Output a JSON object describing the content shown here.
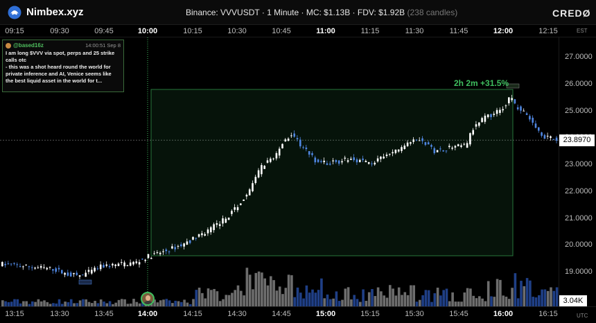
{
  "header": {
    "app_title": "Nimbex.xyz",
    "chart_title": "Binance: VVVUSDT · 1 Minute · MC: $1.13B · FDV: $1.92B",
    "candles_note": "(238 candles)",
    "brand": "CREDØ",
    "logo_icon": "nimbex-logo-icon"
  },
  "top_axis": {
    "timezone": "EST",
    "ticks": [
      "09:15",
      "09:30",
      "09:45",
      "10:00",
      "10:15",
      "10:30",
      "10:45",
      "11:00",
      "11:15",
      "11:30",
      "11:45",
      "12:00",
      "12:15"
    ]
  },
  "bottom_axis": {
    "timezone": "UTC",
    "ticks": [
      "13:15",
      "13:30",
      "13:45",
      "14:00",
      "14:15",
      "14:30",
      "14:45",
      "15:00",
      "15:15",
      "15:30",
      "15:45",
      "16:00",
      "16:15"
    ]
  },
  "price_axis": {
    "ticks": [
      "27.0000",
      "26.0000",
      "25.0000",
      "24.0000",
      "23.0000",
      "22.0000",
      "21.0000",
      "20.0000",
      "19.0000"
    ],
    "current_price": "23.8970",
    "volume_label": "3.04K"
  },
  "range_box": {
    "label": "2h 2m  +31.5%"
  },
  "tweet": {
    "handle": "@based16z",
    "time": "14:00:51 Sep 8",
    "body": "I am long $VVV via spot, perps and 25 strike calls otc\n- this was a shot heard round the world for private inference and AI, Venice seems like the best liquid asset in the world for t..."
  },
  "colors": {
    "up": "#ffffff",
    "down": "#4f86e0",
    "range": "#3fbf5f",
    "volume_up": "#6d6d6d",
    "volume_down": "#1f3f86"
  }
}
